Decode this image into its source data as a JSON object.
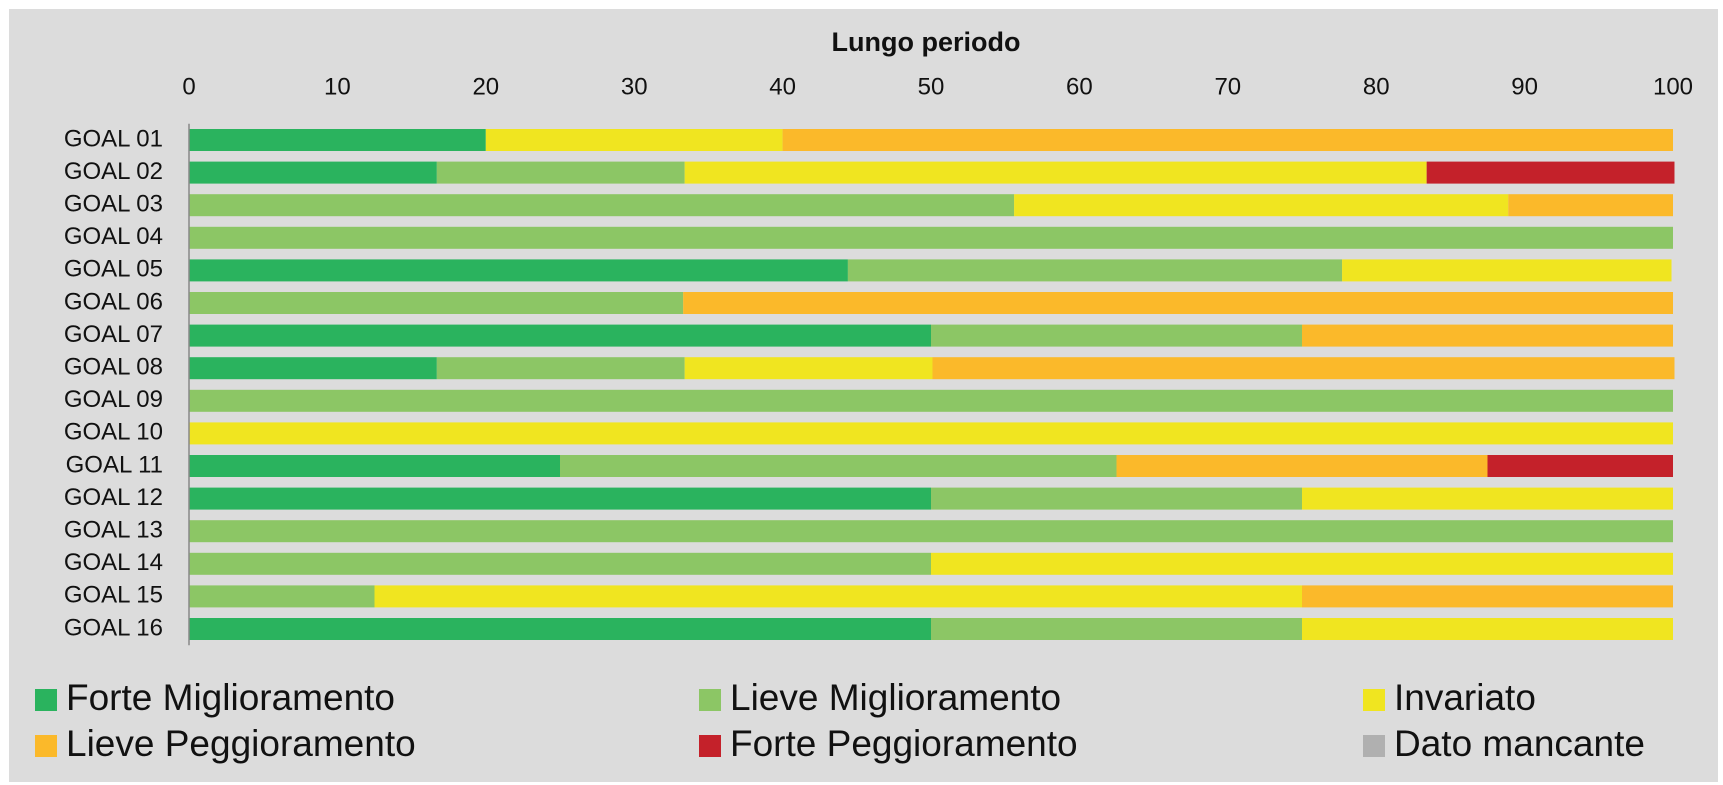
{
  "chart_data": {
    "type": "stacked_barh",
    "title": "Lungo periodo",
    "categories": [
      "GOAL 01",
      "GOAL 02",
      "GOAL 03",
      "GOAL 04",
      "GOAL 05",
      "GOAL 06",
      "GOAL 07",
      "GOAL 08",
      "GOAL 09",
      "GOAL 10",
      "GOAL 11",
      "GOAL 12",
      "GOAL 13",
      "GOAL 14",
      "GOAL 15",
      "GOAL 16"
    ],
    "series": [
      {
        "name": "Forte Miglioramento",
        "color": "#2ab35e",
        "values": [
          20,
          16.7,
          0,
          0,
          44.4,
          0,
          50,
          16.7,
          0,
          0,
          25,
          50,
          0,
          0,
          0,
          50
        ]
      },
      {
        "name": "Lieve Miglioramento",
        "color": "#8cc665",
        "values": [
          0,
          16.7,
          55.6,
          100,
          33.3,
          33.3,
          25,
          16.7,
          100,
          0,
          37.5,
          25,
          100,
          50,
          12.5,
          25
        ]
      },
      {
        "name": "Invariato",
        "color": "#f0e520",
        "values": [
          20,
          50,
          33.3,
          0,
          22.2,
          0,
          0,
          16.7,
          0,
          100,
          0,
          25,
          0,
          50,
          62.5,
          25
        ]
      },
      {
        "name": "Lieve Peggioramento",
        "color": "#fbb92a",
        "values": [
          60,
          0,
          11.1,
          0,
          0,
          66.7,
          25,
          50,
          0,
          0,
          25,
          0,
          0,
          0,
          25,
          0
        ]
      },
      {
        "name": "Forte Peggioramento",
        "color": "#c4212a",
        "values": [
          0,
          16.7,
          0,
          0,
          0,
          0,
          0,
          0,
          0,
          0,
          12.5,
          0,
          0,
          0,
          0,
          0
        ]
      },
      {
        "name": "Dato mancante",
        "color": "#b0b0b0",
        "values": [
          0,
          0,
          0,
          0,
          0,
          0,
          0,
          0,
          0,
          0,
          0,
          0,
          0,
          0,
          0,
          0
        ]
      }
    ],
    "xlim": [
      0,
      100
    ],
    "xticks": [
      0,
      10,
      20,
      30,
      40,
      50,
      60,
      70,
      80,
      90,
      100
    ],
    "legend": "bottom"
  }
}
